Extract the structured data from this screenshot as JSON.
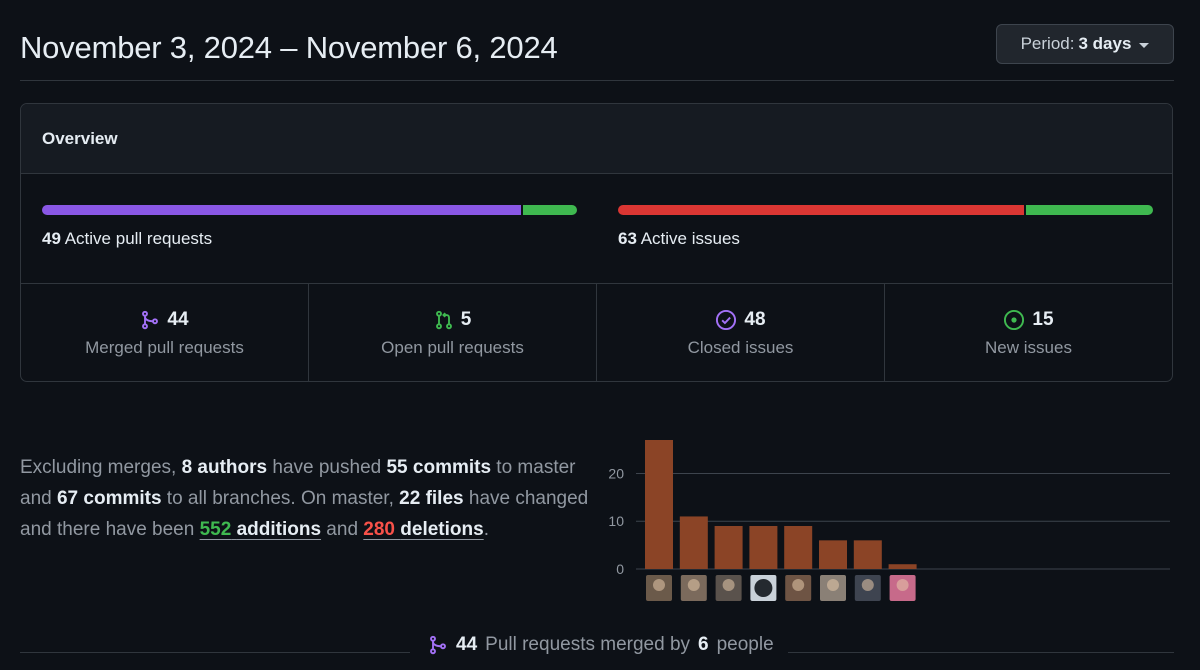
{
  "header": {
    "title": "November 3, 2024 – November 6, 2024",
    "period_label": "Period:",
    "period_value": "3 days"
  },
  "overview": {
    "title": "Overview",
    "pr_bar": {
      "count": "49",
      "label": "Active pull requests",
      "merged_fraction": 0.898,
      "colors": [
        "#8957e5",
        "#3fb950"
      ]
    },
    "issue_bar": {
      "count": "63",
      "label": "Active issues",
      "closed_fraction": 0.762,
      "colors": [
        "#da3633",
        "#3fb950"
      ]
    },
    "stats": [
      {
        "value": "44",
        "label": "Merged pull requests",
        "icon": "git-merge-icon",
        "color": "#a371f7"
      },
      {
        "value": "5",
        "label": "Open pull requests",
        "icon": "git-pull-request-icon",
        "color": "#3fb950"
      },
      {
        "value": "48",
        "label": "Closed issues",
        "icon": "issue-closed-icon",
        "color": "#a371f7"
      },
      {
        "value": "15",
        "label": "New issues",
        "icon": "issue-opened-icon",
        "color": "#3fb950"
      }
    ]
  },
  "summary": {
    "t1": "Excluding merges, ",
    "authors": "8 authors",
    "t2": " have pushed ",
    "commits_master": "55 commits",
    "t3": " to master and ",
    "commits_all": "67 commits",
    "t4": " to all branches. On master, ",
    "files": "22 files",
    "t5": " have changed and there have been ",
    "additions_num": "552",
    "additions_word": "additions",
    "t6": " and ",
    "deletions_num": "280",
    "deletions_word": "deletions",
    "t7": "."
  },
  "chart_data": {
    "type": "bar",
    "categories": [
      "author-1",
      "author-2",
      "author-3",
      "author-4",
      "author-5",
      "author-6",
      "author-7",
      "author-8"
    ],
    "values": [
      27,
      11,
      9,
      9,
      9,
      6,
      6,
      1
    ],
    "yticks": [
      0,
      10,
      20
    ],
    "ylim": [
      0,
      27
    ],
    "bar_color": "#8b4426",
    "grid": true
  },
  "footer": {
    "count": "44",
    "text1": "Pull requests merged by",
    "people": "6",
    "text2": "people"
  }
}
